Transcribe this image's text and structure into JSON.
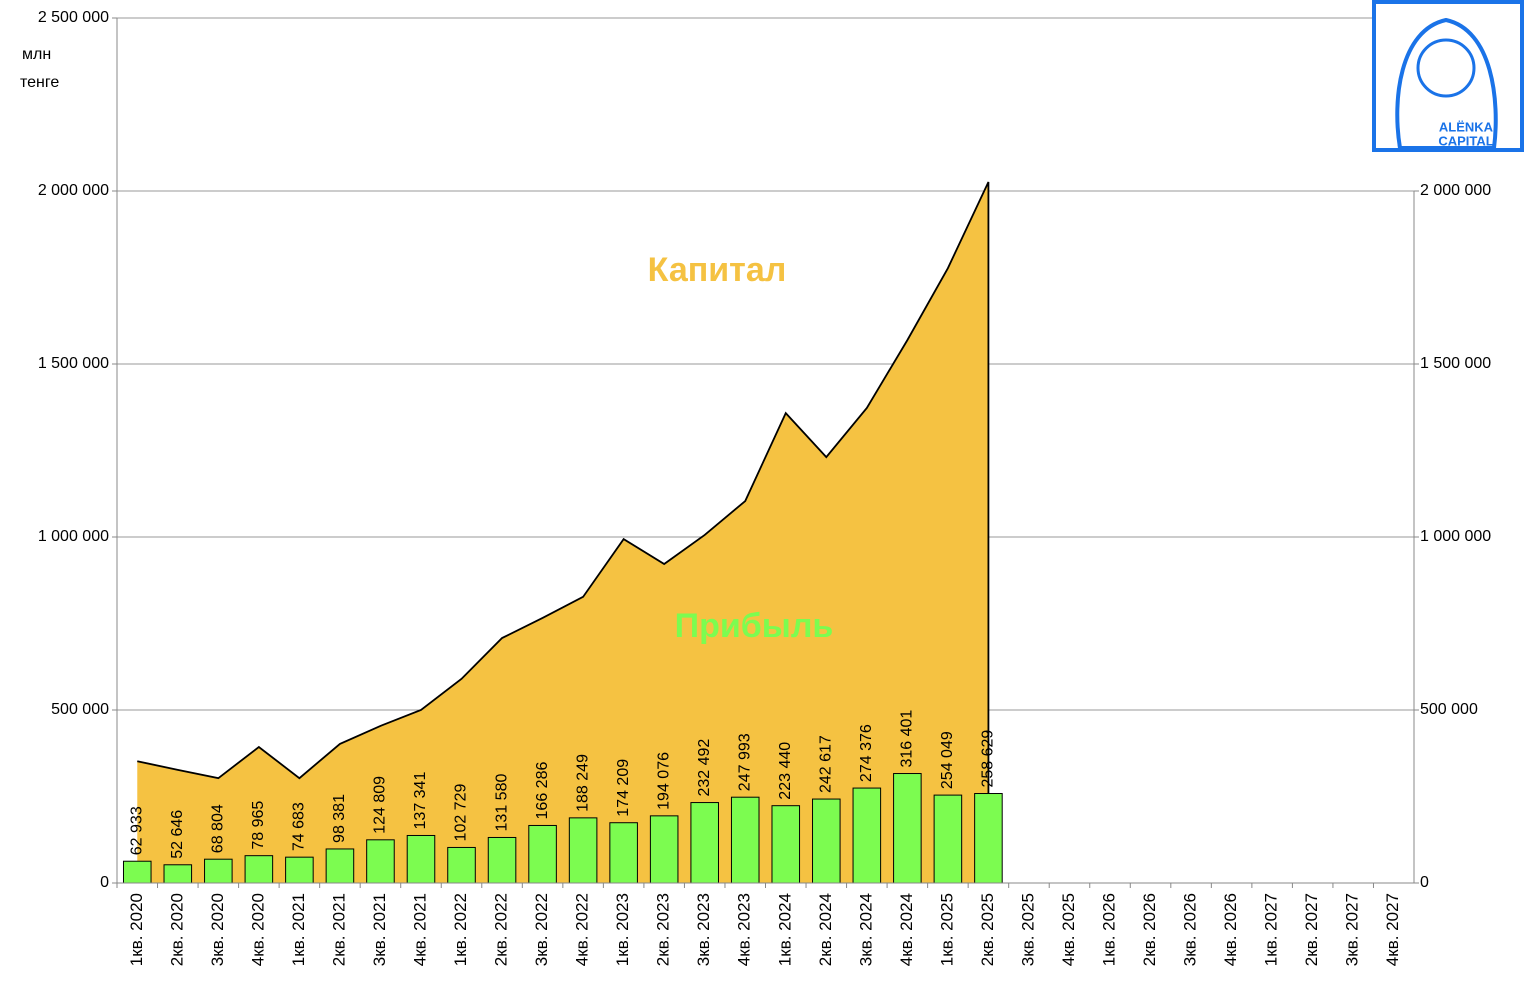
{
  "chart_data": {
    "type": "bar",
    "unit_label": [
      "млн",
      "тенге"
    ],
    "annotations": [
      "Капитал",
      "Прибыль"
    ],
    "logo": [
      "ALËNKA",
      "CAPITAL"
    ],
    "categories": [
      "1кв. 2020",
      "2кв. 2020",
      "3кв. 2020",
      "4кв. 2020",
      "1кв. 2021",
      "2кв. 2021",
      "3кв. 2021",
      "4кв. 2021",
      "1кв. 2022",
      "2кв. 2022",
      "3кв. 2022",
      "4кв. 2022",
      "1кв. 2023",
      "2кв. 2023",
      "3кв. 2023",
      "4кв. 2023",
      "1кв. 2024",
      "2кв. 2024",
      "3кв. 2024",
      "4кв. 2024",
      "1кв. 2025",
      "2кв. 2025",
      "3кв. 2025",
      "4кв. 2025",
      "1кв. 2026",
      "2кв. 2026",
      "3кв. 2026",
      "4кв. 2026",
      "1кв. 2027",
      "2кв. 2027",
      "3кв. 2027",
      "4кв. 2027"
    ],
    "series": [
      {
        "name": "Прибыль",
        "type": "bar",
        "color": "#7cfc50",
        "values": [
          62933,
          52646,
          68804,
          78965,
          74683,
          98381,
          124809,
          137341,
          102729,
          131580,
          166286,
          188249,
          174209,
          194076,
          232492,
          247993,
          223440,
          242617,
          274376,
          316401,
          254049,
          258629,
          null,
          null,
          null,
          null,
          null,
          null,
          null,
          null,
          null,
          null
        ],
        "value_labels": [
          "62 933",
          "52 646",
          "68 804",
          "78 965",
          "74 683",
          "98 381",
          "124 809",
          "137 341",
          "102 729",
          "131 580",
          "166 286",
          "188 249",
          "174 209",
          "194 076",
          "232 492",
          "247 993",
          "223 440",
          "242 617",
          "274 376",
          "316 401",
          "254 049",
          "258 629",
          null,
          null,
          null,
          null,
          null,
          null,
          null,
          null,
          null,
          null
        ]
      },
      {
        "name": "Капитал",
        "type": "area",
        "axis": "y2",
        "color": "#f5c242",
        "values": [
          352000,
          327000,
          303000,
          393000,
          303000,
          402000,
          454000,
          500000,
          590000,
          708000,
          766000,
          827000,
          994000,
          922000,
          1006000,
          1104000,
          1358000,
          1231000,
          1373000,
          1569000,
          1777000,
          2026000,
          null,
          null,
          null,
          null,
          null,
          null,
          null,
          null,
          null,
          null
        ]
      }
    ],
    "ylim": [
      0,
      2500000
    ],
    "yticks": [
      0,
      {
        "value": 500000,
        "label": "500 000"
      },
      {
        "value": 1000000,
        "label": "1 000 000"
      },
      {
        "value": 1500000,
        "label": "1 500 000"
      },
      {
        "value": 2000000,
        "label": "2 000 000"
      },
      {
        "value": 2500000,
        "label": "2 500 000"
      }
    ],
    "y2lim": [
      0,
      2500000
    ],
    "y2ticks": [
      0,
      {
        "value": 500000,
        "label": "500 000"
      },
      {
        "value": 1000000,
        "label": "1 000 000"
      },
      {
        "value": 1500000,
        "label": "1 500 000"
      },
      {
        "value": 2000000,
        "label": "2 000 000"
      }
    ],
    "grid": true
  }
}
